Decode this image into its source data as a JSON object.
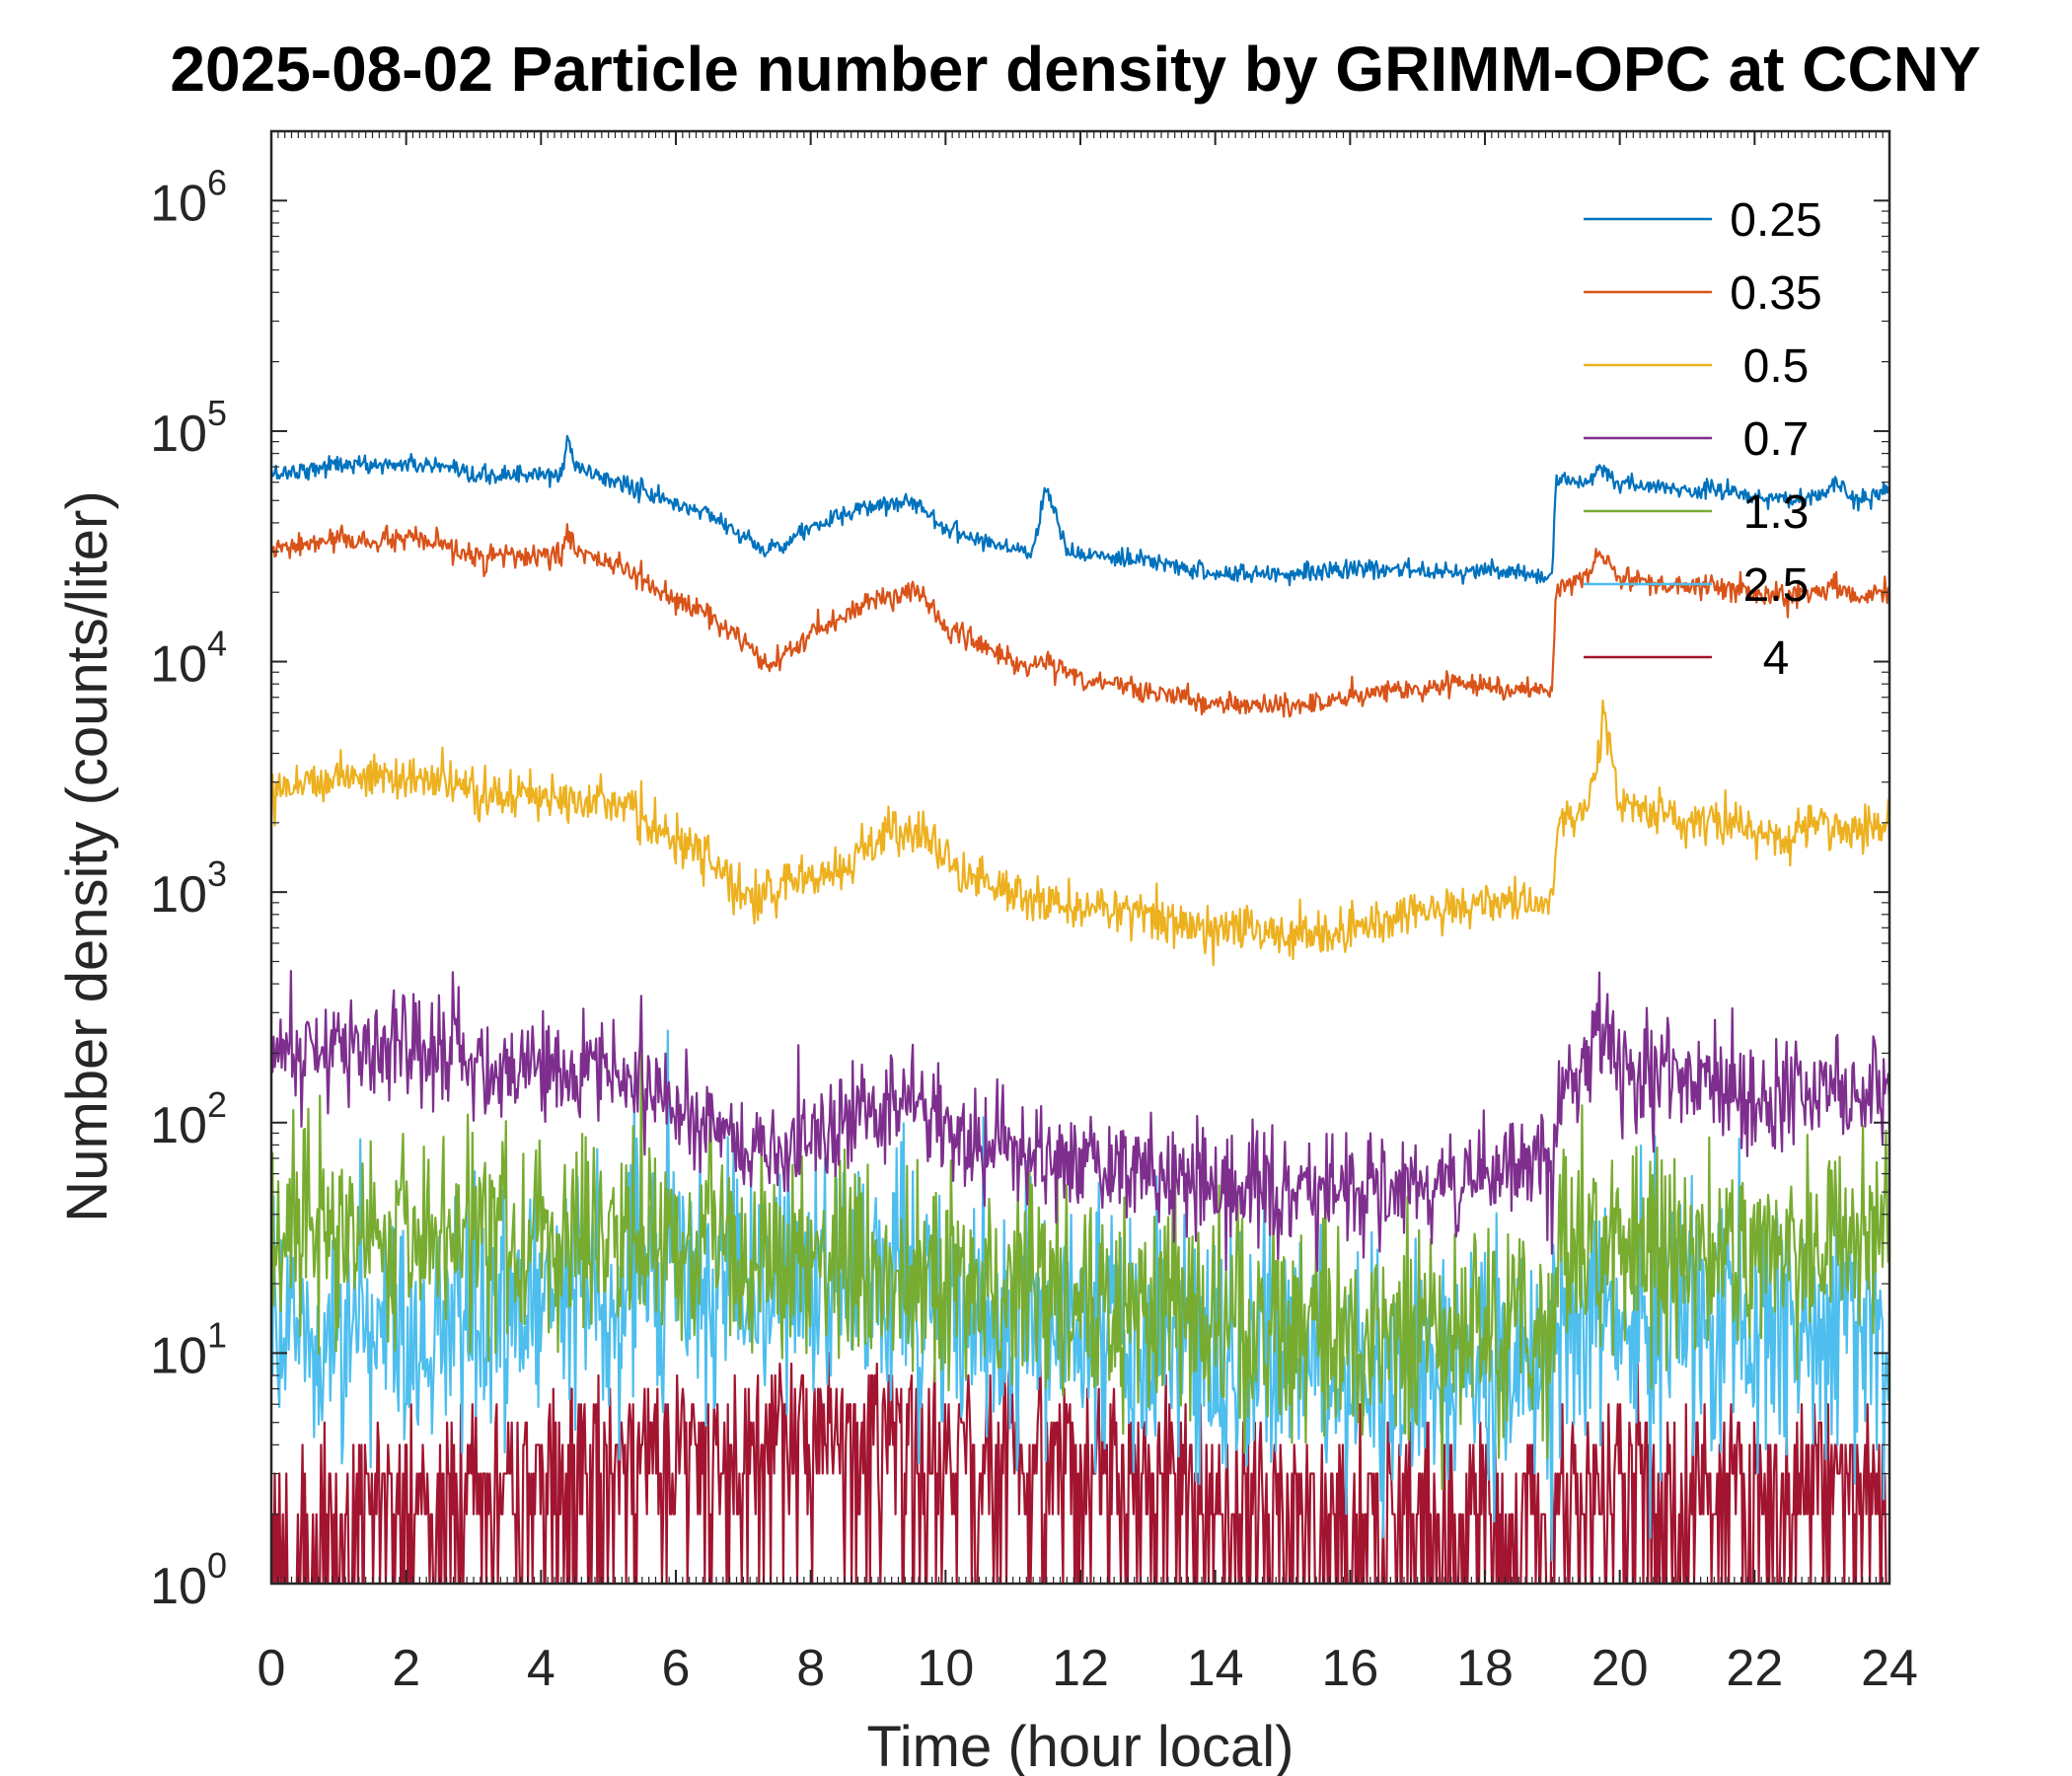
{
  "chart_data": {
    "type": "line",
    "title": "2025-08-02 Particle number density by GRIMM-OPC at CCNY",
    "xlabel": "Time (hour local)",
    "ylabel": "Number density (counts/liter)",
    "xlim": [
      0,
      24
    ],
    "ylim": [
      1,
      2000000
    ],
    "yscale": "log",
    "x_ticks": [
      0,
      2,
      4,
      6,
      8,
      10,
      12,
      14,
      16,
      18,
      20,
      22,
      24
    ],
    "x_tick_labels": [
      "0",
      "2",
      "4",
      "6",
      "8",
      "10",
      "12",
      "14",
      "16",
      "18",
      "20",
      "22",
      "24"
    ],
    "y_ticks": [
      {
        "value": 1,
        "base": "10",
        "exp": "0"
      },
      {
        "value": 10,
        "base": "10",
        "exp": "1"
      },
      {
        "value": 100,
        "base": "10",
        "exp": "2"
      },
      {
        "value": 1000,
        "base": "10",
        "exp": "3"
      },
      {
        "value": 10000,
        "base": "10",
        "exp": "4"
      },
      {
        "value": 100000,
        "base": "10",
        "exp": "5"
      },
      {
        "value": 1000000,
        "base": "10",
        "exp": "6"
      }
    ],
    "grid": false,
    "legend_position": "top-right",
    "series": [
      {
        "name": "0.25",
        "color": "#0072BD",
        "noise": 0.04,
        "x": [
          0,
          0.5,
          1,
          1.5,
          2,
          2.5,
          2.8,
          3,
          3.5,
          4,
          4.3,
          4.4,
          4.5,
          5,
          5.5,
          6,
          6.5,
          7,
          7.3,
          7.5,
          8,
          8.5,
          9,
          9.5,
          9.7,
          10,
          10.5,
          11,
          11.3,
          11.5,
          11.8,
          12,
          12.5,
          13,
          13.5,
          14,
          14.5,
          15,
          15.5,
          16,
          16.5,
          17,
          17.5,
          18,
          18.5,
          19,
          19.05,
          19.2,
          19.5,
          19.7,
          19.8,
          20,
          20.5,
          21,
          21.5,
          22,
          22.5,
          23,
          23.2,
          23.5,
          24
        ],
        "y": [
          65000,
          68000,
          72000,
          71000,
          72000,
          70000,
          65000,
          63000,
          65000,
          64000,
          64000,
          95000,
          70000,
          62000,
          55000,
          48000,
          44000,
          35000,
          30000,
          32000,
          38000,
          43000,
          48000,
          50000,
          45000,
          38000,
          34000,
          31000,
          30000,
          60000,
          30000,
          29000,
          28000,
          27000,
          26000,
          24000,
          24000,
          24000,
          25000,
          25000,
          25000,
          25000,
          25000,
          25000,
          24000,
          23000,
          60000,
          62000,
          60000,
          70000,
          65000,
          58000,
          57000,
          55000,
          56000,
          52000,
          50000,
          52000,
          60000,
          50000,
          55000
        ]
      },
      {
        "name": "0.35",
        "color": "#D95319",
        "noise": 0.05,
        "x": [
          0,
          0.5,
          1,
          1.5,
          2,
          2.5,
          2.8,
          3,
          3.5,
          4,
          4.3,
          4.4,
          4.5,
          5,
          5.5,
          6,
          6.5,
          7,
          7.3,
          7.5,
          8,
          8.5,
          9,
          9.5,
          9.7,
          10,
          10.5,
          11,
          11.3,
          11.5,
          11.8,
          12,
          12.5,
          13,
          13.5,
          14,
          14.5,
          15,
          15.5,
          16,
          16.5,
          17,
          17.5,
          18,
          18.5,
          19,
          19.05,
          19.2,
          19.5,
          19.7,
          19.8,
          20,
          20.5,
          21,
          21.5,
          22,
          22.5,
          23,
          23.2,
          23.5,
          24
        ],
        "y": [
          30000,
          32000,
          34000,
          33000,
          34000,
          32000,
          30000,
          28000,
          29000,
          28000,
          29000,
          38000,
          30000,
          27000,
          23000,
          18000,
          16000,
          12000,
          9500,
          10000,
          13000,
          16000,
          19000,
          20000,
          19000,
          14000,
          12000,
          10000,
          9500,
          10000,
          9000,
          8500,
          8000,
          7500,
          7000,
          6500,
          6500,
          6500,
          6500,
          7000,
          7500,
          7500,
          8000,
          8000,
          7500,
          7500,
          20000,
          22000,
          23000,
          30000,
          28000,
          22000,
          22000,
          21000,
          21000,
          20000,
          19000,
          20000,
          22000,
          19000,
          20000
        ]
      },
      {
        "name": "0.5",
        "color": "#EDB120",
        "noise": 0.1,
        "x": [
          0,
          0.5,
          1,
          1.5,
          2,
          2.5,
          3,
          3.5,
          4,
          4.5,
          5,
          5.5,
          6,
          6.5,
          7,
          7.3,
          7.5,
          8,
          8.5,
          8.8,
          9,
          9.5,
          10,
          10.5,
          11,
          11.5,
          12,
          12.5,
          13,
          13.5,
          14,
          14.5,
          15,
          15.5,
          16,
          16.5,
          17,
          17.5,
          18,
          18.5,
          19,
          19.1,
          19.5,
          19.7,
          19.8,
          20,
          20.5,
          21,
          21.5,
          22,
          22.5,
          23,
          23.5,
          24
        ],
        "y": [
          2900,
          3000,
          3200,
          3200,
          3100,
          3000,
          2700,
          2600,
          2600,
          2700,
          2500,
          2100,
          1600,
          1400,
          1000,
          950,
          1000,
          1200,
          1300,
          1500,
          1700,
          1900,
          1400,
          1100,
          1000,
          900,
          850,
          850,
          800,
          750,
          700,
          700,
          650,
          650,
          700,
          750,
          800,
          850,
          900,
          900,
          900,
          2000,
          2300,
          4000,
          6000,
          2500,
          2200,
          2100,
          2000,
          1800,
          1700,
          2100,
          1800,
          2200
        ]
      },
      {
        "name": "0.7",
        "color": "#7E2F8E",
        "noise": 0.24,
        "x": [
          0,
          1,
          2,
          3,
          4,
          4.5,
          5,
          5.5,
          6,
          6.5,
          7,
          7.5,
          8,
          8.5,
          9,
          9.5,
          10,
          10.5,
          11,
          12,
          13,
          14,
          15,
          16,
          17,
          18,
          18.5,
          19,
          19.1,
          19.5,
          19.7,
          19.85,
          20,
          20.5,
          21,
          21.5,
          22,
          22.5,
          23,
          23.5,
          24
        ],
        "y": [
          200,
          210,
          210,
          195,
          180,
          170,
          160,
          140,
          120,
          95,
          75,
          75,
          85,
          100,
          120,
          125,
          95,
          80,
          75,
          65,
          60,
          55,
          50,
          50,
          55,
          60,
          65,
          70,
          130,
          170,
          260,
          240,
          170,
          160,
          150,
          130,
          125,
          130,
          140,
          130,
          140
        ]
      },
      {
        "name": "1.3",
        "color": "#77AC30",
        "noise": 0.45,
        "x": [
          0,
          1,
          2,
          3,
          4,
          5,
          6,
          7,
          8,
          9,
          10,
          11,
          12,
          13,
          14,
          15,
          16,
          17,
          18,
          19,
          19.1,
          20,
          21,
          22,
          23,
          24
        ],
        "y": [
          30,
          32,
          33,
          32,
          30,
          30,
          28,
          26,
          25,
          26,
          22,
          20,
          17,
          15,
          14,
          12,
          12,
          12,
          12,
          12,
          28,
          30,
          28,
          27,
          30,
          30
        ]
      },
      {
        "name": "2.5",
        "color": "#4DBEEE",
        "noise": 0.55,
        "x": [
          0,
          1,
          2,
          3,
          4,
          5,
          6,
          7,
          8,
          9,
          10,
          11,
          12,
          13,
          14,
          15,
          16,
          17,
          18,
          19,
          19.1,
          20,
          21,
          22,
          23,
          24
        ],
        "y": [
          12,
          13,
          14,
          15,
          16,
          18,
          20,
          20,
          20,
          20,
          16,
          14,
          12,
          11,
          10,
          9,
          8,
          8,
          8,
          9,
          14,
          15,
          14,
          13,
          13,
          13
        ]
      },
      {
        "name": "4",
        "color": "#A2142F",
        "noise": 0.55,
        "x": [
          0,
          1,
          2,
          3,
          4,
          5,
          6,
          7,
          8,
          9,
          10,
          11,
          12,
          13,
          14,
          15,
          16,
          17,
          18,
          19,
          19.1,
          20,
          21,
          22,
          23,
          24
        ],
        "y": [
          1.2,
          1.5,
          2,
          2.5,
          3,
          3.5,
          3.8,
          4,
          4.2,
          4.5,
          4,
          3.5,
          3,
          2.5,
          2.2,
          2,
          1.8,
          1.6,
          1.6,
          1.6,
          2.5,
          2.8,
          2.5,
          2.4,
          2.5,
          2.5
        ]
      }
    ]
  }
}
